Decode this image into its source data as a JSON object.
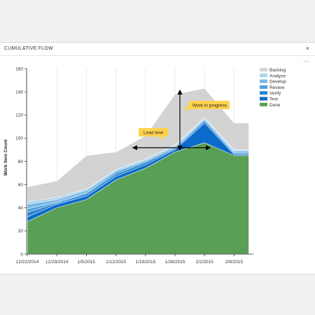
{
  "panel": {
    "title": "CUMULATIVE FLOW",
    "close_label": "×",
    "more_label": "···"
  },
  "annotations": {
    "lead_time": "Lead time",
    "work_in_progress": "Work in progress"
  },
  "chart_data": {
    "type": "area",
    "ylabel": "Work Item Count",
    "xlabel": "",
    "ylim": [
      0,
      160
    ],
    "yticks": [
      0,
      20,
      40,
      60,
      80,
      100,
      120,
      140,
      160
    ],
    "x": [
      "12/22/2014",
      "12/29/2014",
      "1/5/2015",
      "1/12/2015",
      "1/19/2015",
      "1/26/2015",
      "2/2/2015",
      "2/9/2015"
    ],
    "grid": "vertical",
    "legend_position": "right",
    "series": [
      {
        "name": "Backlog",
        "color": "#d3d3d3",
        "top": [
          58,
          63,
          85,
          88,
          102,
          138,
          143,
          113,
          113
        ]
      },
      {
        "name": "Analyze",
        "color": "#aad4ef",
        "top": [
          45,
          49,
          56,
          73,
          82,
          94,
          118,
          90,
          90
        ]
      },
      {
        "name": "Develop",
        "color": "#78b8e3",
        "top": [
          43,
          47,
          55,
          72,
          81,
          93,
          117,
          89,
          89
        ]
      },
      {
        "name": "Review",
        "color": "#4ea1db",
        "top": [
          39,
          45,
          53,
          71,
          80,
          92,
          116,
          88,
          88
        ]
      },
      {
        "name": "Verify",
        "color": "#2d86cf",
        "top": [
          36,
          44,
          52,
          69,
          79,
          91,
          115,
          87,
          87
        ]
      },
      {
        "name": "Test",
        "color": "#0a6bcb",
        "top": [
          32,
          43,
          50,
          67,
          77,
          90,
          113,
          86,
          86
        ]
      },
      {
        "name": "Done",
        "color": "#5a9f56",
        "top": [
          28,
          40,
          47,
          64,
          74,
          88,
          96,
          85,
          85
        ]
      }
    ],
    "x_positions": [
      0,
      1,
      2,
      3,
      4,
      5,
      6,
      7,
      7.5
    ]
  }
}
